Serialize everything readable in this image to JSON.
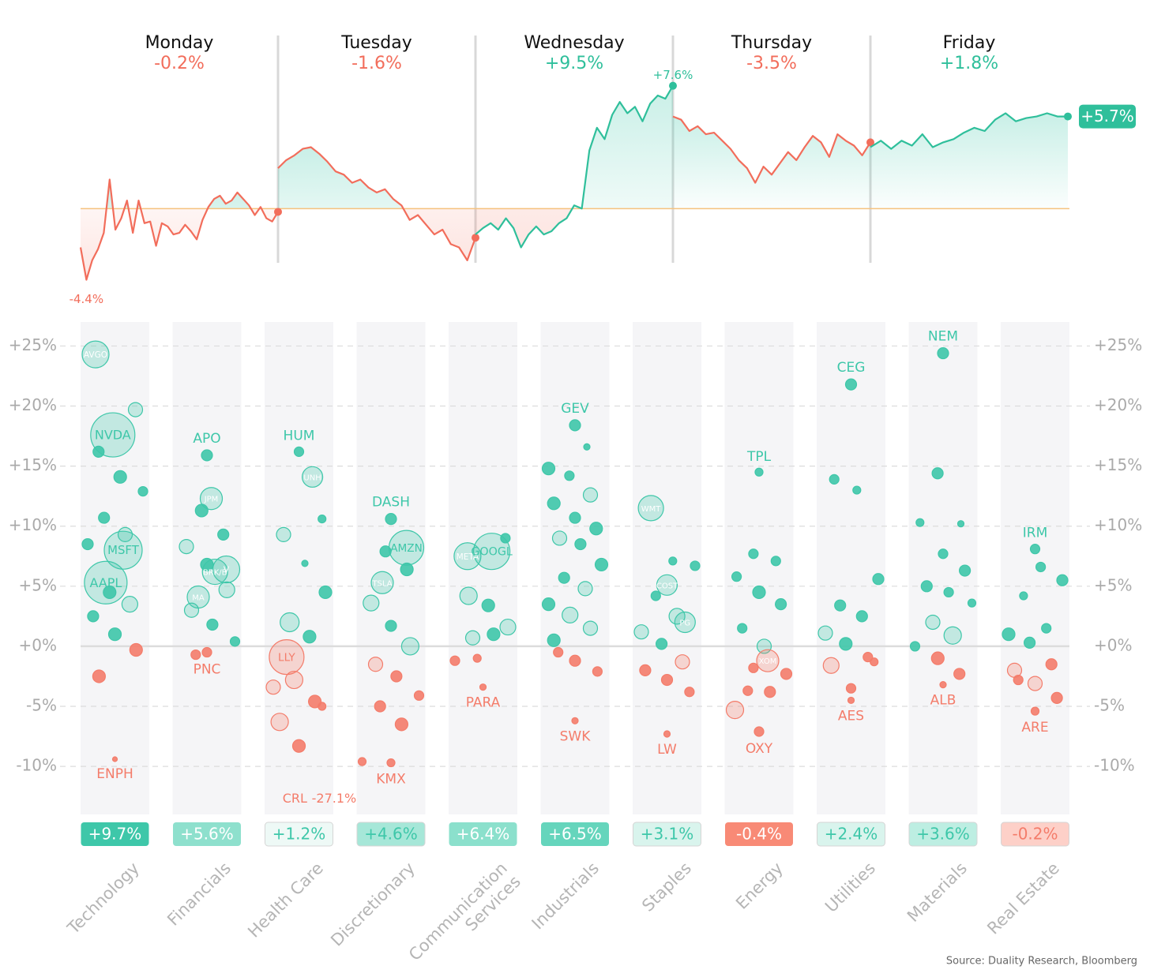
{
  "chart_data": [
    {
      "type": "line",
      "ylim": [
        -5.5,
        9
      ],
      "up_color": "#2fbf9b",
      "down_color": "#f26d5b",
      "days": [
        {
          "name": "Monday",
          "change": -0.2,
          "change_label": "-0.2%",
          "values": [
            -2.4,
            -4.4,
            -3.2,
            -2.5,
            -1.5,
            1.8,
            -1.3,
            -0.6,
            0.5,
            -1.5,
            0.5,
            -0.9,
            -0.8,
            -2.3,
            -0.9,
            -1.1,
            -1.6,
            -1.5,
            -1.0,
            -1.4,
            -1.9,
            -0.7,
            0.1,
            0.6,
            0.8,
            0.3,
            0.5,
            1.0,
            0.6,
            0.2,
            -0.4,
            0.1,
            -0.6,
            -0.8,
            -0.2
          ],
          "value_labels": [
            null,
            "-4.4%",
            null,
            null,
            null,
            null,
            null,
            null,
            null,
            null,
            null,
            null,
            null,
            null,
            null,
            null,
            null,
            null,
            null,
            null,
            null,
            null,
            null,
            null,
            null,
            null,
            null,
            null,
            null,
            null,
            null,
            null,
            null,
            null,
            null
          ]
        },
        {
          "name": "Tuesday",
          "change": -1.6,
          "change_label": "-1.6%",
          "values": [
            2.5,
            3.0,
            3.3,
            3.7,
            3.8,
            3.4,
            2.9,
            2.3,
            2.1,
            1.6,
            1.8,
            1.3,
            1.0,
            1.2,
            0.6,
            0.2,
            -0.7,
            -0.4,
            -1.0,
            -1.6,
            -1.3,
            -2.2,
            -2.4,
            -3.2,
            -1.8
          ]
        },
        {
          "name": "Wednesday",
          "change": 9.5,
          "change_label": "+9.5%",
          "values": [
            -1.6,
            -1.2,
            -0.9,
            -1.3,
            -0.6,
            -1.2,
            -2.4,
            -1.6,
            -1.1,
            -1.6,
            -1.4,
            -0.9,
            -0.6,
            0.2,
            0.0,
            3.6,
            5.0,
            4.3,
            5.8,
            6.6,
            5.9,
            6.3,
            5.4,
            6.5,
            7.0,
            6.8,
            7.6
          ],
          "value_labels": [
            null,
            null,
            null,
            null,
            null,
            null,
            null,
            null,
            null,
            null,
            null,
            null,
            null,
            null,
            null,
            null,
            null,
            null,
            null,
            null,
            null,
            null,
            null,
            null,
            null,
            null,
            "+7.6%"
          ]
        },
        {
          "name": "Thursday",
          "change": -3.5,
          "change_label": "-3.5%",
          "values": [
            5.7,
            5.5,
            4.8,
            5.1,
            4.6,
            4.7,
            4.2,
            3.7,
            3.0,
            2.5,
            1.6,
            2.6,
            2.1,
            2.8,
            3.5,
            3.0,
            3.8,
            4.5,
            4.1,
            3.2,
            4.6,
            4.2,
            3.9,
            3.3,
            4.1
          ]
        },
        {
          "name": "Friday",
          "change": 1.8,
          "change_label": "+1.8%",
          "values": [
            3.8,
            4.2,
            3.7,
            4.2,
            3.9,
            4.6,
            3.8,
            4.1,
            4.3,
            4.7,
            5.0,
            4.8,
            5.5,
            5.9,
            5.4,
            5.6,
            5.7,
            5.9,
            5.7,
            5.7
          ],
          "value_labels": [
            null,
            null,
            null,
            null,
            null,
            null,
            null,
            null,
            null,
            null,
            null,
            null,
            null,
            null,
            null,
            null,
            null,
            null,
            null,
            "+5.7%"
          ]
        }
      ]
    },
    {
      "type": "bubble",
      "ylim": [
        -14,
        27
      ],
      "grid": true,
      "up_color": "#3ec7a9",
      "down_color": "#f47c6a",
      "yticks": [
        {
          "value": 25,
          "label": "+25%"
        },
        {
          "value": 20,
          "label": "+20%"
        },
        {
          "value": 15,
          "label": "+15%"
        },
        {
          "value": 10,
          "label": "+10%"
        },
        {
          "value": 5,
          "label": "+5%"
        },
        {
          "value": 0,
          "label": "+0%"
        },
        {
          "value": -5,
          "label": "-5%"
        },
        {
          "value": -10,
          "label": "-10%"
        }
      ],
      "sectors": [
        {
          "name": "Technology",
          "total": 9.7,
          "total_label": "+9.7%",
          "total_color": "#3ec7a9",
          "labels": [
            "AVGO",
            "NVDA",
            "MSFT",
            "AAPL",
            "ENPH",
            null,
            null,
            null,
            null,
            null,
            null,
            null,
            null,
            null,
            null,
            null,
            null,
            null
          ],
          "values": [
            24.3,
            17.6,
            8.0,
            5.3,
            -9.4,
            19.7,
            16.2,
            14.1,
            12.9,
            10.7,
            9.3,
            8.5,
            4.5,
            3.5,
            2.5,
            1.0,
            -0.3,
            -2.5
          ],
          "sizes": [
            17,
            28,
            24,
            27,
            3,
            9,
            7,
            8,
            6,
            7,
            9,
            7,
            8,
            10,
            7,
            8,
            8,
            8
          ]
        },
        {
          "name": "Financials",
          "total": 5.6,
          "total_label": "+5.6%",
          "total_color": "#8ee0cd",
          "labels": [
            "APO",
            "JPM",
            "V",
            "MA",
            "BRK/B",
            "PNC",
            null,
            null,
            null,
            null,
            null,
            null,
            null,
            null,
            null
          ],
          "values": [
            15.9,
            12.3,
            6.4,
            4.1,
            6.2,
            -0.5,
            11.3,
            9.3,
            8.3,
            6.8,
            4.7,
            3.0,
            1.8,
            0.4,
            -0.7
          ],
          "sizes": [
            7,
            14,
            17,
            14,
            16,
            6,
            8,
            7,
            9,
            8,
            10,
            9,
            7,
            6,
            6
          ]
        },
        {
          "name": "Health Care",
          "total": 1.2,
          "total_label": "+1.2%",
          "total_color": "#eef9f6",
          "labels": [
            "HUM",
            "UNH",
            "LLY",
            "CRL",
            null,
            null,
            null,
            null,
            null,
            null,
            null,
            null,
            null,
            null,
            null,
            null
          ],
          "value_labels": [
            null,
            null,
            null,
            "-27.1%",
            null,
            null,
            null,
            null,
            null,
            null,
            null,
            null,
            null,
            null,
            null,
            null
          ],
          "values": [
            16.2,
            14.1,
            -0.9,
            -27.1,
            10.6,
            9.3,
            6.9,
            4.5,
            2.0,
            0.8,
            -3.4,
            -2.8,
            -4.6,
            -6.3,
            -8.3,
            -5.0
          ],
          "sizes": [
            6,
            13,
            22,
            3,
            5,
            9,
            4,
            8,
            12,
            8,
            9,
            11,
            8,
            11,
            8,
            5
          ]
        },
        {
          "name": "Discretionary",
          "total": 4.6,
          "total_label": "+4.6%",
          "total_color": "#a6e7d8",
          "labels": [
            "DASH",
            "AMZN",
            "TSLA",
            "KMX",
            null,
            null,
            null,
            null,
            null,
            null,
            null,
            null,
            null,
            null,
            null
          ],
          "values": [
            10.6,
            8.2,
            5.3,
            -9.7,
            -9.6,
            7.9,
            6.4,
            3.6,
            1.7,
            0.0,
            -1.5,
            -2.5,
            -4.1,
            -5.0,
            -6.5
          ],
          "sizes": [
            7,
            22,
            14,
            5,
            5,
            7,
            8,
            10,
            7,
            11,
            9,
            7,
            6,
            7,
            8
          ]
        },
        {
          "name": "Communication Services",
          "total": 6.4,
          "total_label": "+6.4%",
          "total_color": "#8be0cc",
          "labels": [
            "GOOGL",
            "META",
            "PARA",
            null,
            null,
            null,
            null,
            null,
            null,
            null,
            null
          ],
          "values": [
            7.9,
            7.5,
            -3.4,
            9.0,
            4.2,
            3.4,
            1.6,
            0.7,
            1.0,
            -1.2,
            -1.0
          ],
          "sizes": [
            23,
            17,
            4,
            6,
            11,
            8,
            10,
            9,
            8,
            6,
            5
          ]
        },
        {
          "name": "Industrials",
          "total": 6.5,
          "total_label": "+6.5%",
          "total_color": "#65d5bc",
          "labels": [
            "GEV",
            "SWK",
            null,
            null,
            null,
            null,
            null,
            null,
            null,
            null,
            null,
            null,
            null,
            null,
            null,
            null,
            null,
            null,
            null,
            null,
            null
          ],
          "values": [
            18.4,
            -6.2,
            16.6,
            14.8,
            14.2,
            12.6,
            11.9,
            10.7,
            9.8,
            9.0,
            8.5,
            6.8,
            5.7,
            4.8,
            3.5,
            2.6,
            1.5,
            0.5,
            -1.2,
            -2.1,
            -0.5
          ],
          "sizes": [
            7,
            4,
            4,
            8,
            6,
            9,
            8,
            7,
            8,
            9,
            7,
            8,
            7,
            9,
            8,
            10,
            9,
            8,
            7,
            6,
            6
          ]
        },
        {
          "name": "Staples",
          "total": 3.1,
          "total_label": "+3.1%",
          "total_color": "#d9f4ed",
          "labels": [
            "WMT",
            "COST",
            "PG",
            "LW",
            null,
            null,
            null,
            null,
            null,
            null,
            null,
            null,
            null,
            null
          ],
          "values": [
            11.5,
            5.1,
            2.0,
            -7.3,
            7.1,
            6.7,
            4.2,
            2.5,
            1.2,
            0.2,
            -1.3,
            -2.0,
            -2.8,
            -3.8
          ],
          "sizes": [
            16,
            13,
            13,
            4,
            5,
            6,
            6,
            10,
            9,
            7,
            9,
            7,
            7,
            6
          ]
        },
        {
          "name": "Energy",
          "total": -0.4,
          "total_label": "-0.4%",
          "total_color": "#f88a76",
          "labels": [
            "TPL",
            "XOM",
            "OXY",
            null,
            null,
            null,
            null,
            null,
            null,
            null,
            null,
            null,
            null,
            null,
            null
          ],
          "values": [
            14.5,
            -1.2,
            -7.1,
            7.7,
            7.1,
            5.8,
            4.5,
            3.5,
            1.5,
            0.0,
            -2.3,
            -3.7,
            -3.8,
            -5.3,
            -1.8
          ],
          "sizes": [
            5,
            14,
            6,
            6,
            6,
            6,
            8,
            7,
            6,
            9,
            7,
            6,
            7,
            11,
            6
          ]
        },
        {
          "name": "Utilities",
          "total": 2.4,
          "total_label": "+2.4%",
          "total_color": "#d9f4ed",
          "labels": [
            "CEG",
            "AES",
            null,
            null,
            null,
            null,
            null,
            null,
            null,
            null,
            null,
            null,
            null
          ],
          "values": [
            21.8,
            -4.5,
            13.9,
            13.0,
            5.6,
            3.4,
            2.5,
            1.1,
            0.2,
            -0.9,
            -1.6,
            -3.5,
            -1.3
          ],
          "sizes": [
            7,
            4,
            6,
            5,
            7,
            7,
            7,
            9,
            8,
            6,
            10,
            6,
            5
          ]
        },
        {
          "name": "Materials",
          "total": 3.6,
          "total_label": "+3.6%",
          "total_color": "#bdeee2",
          "labels": [
            "NEM",
            "ALB",
            null,
            null,
            null,
            null,
            null,
            null,
            null,
            null,
            null,
            null,
            null,
            null,
            null
          ],
          "values": [
            24.4,
            -3.2,
            14.4,
            10.2,
            10.3,
            7.7,
            6.3,
            5.0,
            4.5,
            3.6,
            2.0,
            0.9,
            0.0,
            -1.0,
            -2.3
          ],
          "sizes": [
            7,
            4,
            7,
            4,
            5,
            6,
            7,
            7,
            6,
            5,
            9,
            11,
            6,
            8,
            7
          ]
        },
        {
          "name": "Real Estate",
          "total": -0.2,
          "total_label": "-0.2%",
          "total_color": "#fdd0c8",
          "labels": [
            "IRM",
            "ARE",
            null,
            null,
            null,
            null,
            null,
            null,
            null,
            null,
            null,
            null,
            null
          ],
          "values": [
            8.1,
            -5.4,
            6.6,
            5.5,
            4.2,
            1.5,
            1.0,
            0.3,
            -1.5,
            -2.0,
            -3.1,
            -4.3,
            -2.8
          ],
          "sizes": [
            6,
            5,
            6,
            7,
            5,
            6,
            8,
            7,
            7,
            9,
            9,
            7,
            6
          ]
        }
      ]
    }
  ],
  "source": "Source: Duality Research, Bloomberg"
}
